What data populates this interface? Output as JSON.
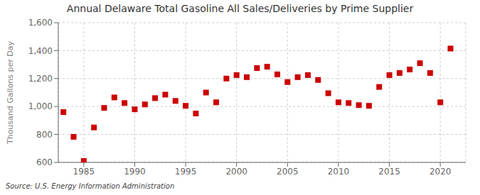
{
  "chart_data": {
    "type": "scatter",
    "title": "Annual Delaware Total Gasoline All Sales/Deliveries by Prime Supplier",
    "y_label": "Thousand Gallons per Day",
    "source": "Source: U.S. Energy Information Administration",
    "x": [
      1983,
      1984,
      1985,
      1986,
      1987,
      1988,
      1989,
      1990,
      1991,
      1992,
      1993,
      1994,
      1995,
      1996,
      1997,
      1998,
      1999,
      2000,
      2001,
      2002,
      2003,
      2004,
      2005,
      2006,
      2007,
      2008,
      2009,
      2010,
      2011,
      2012,
      2013,
      2014,
      2015,
      2016,
      2017,
      2018,
      2019,
      2020,
      2021
    ],
    "values": [
      960,
      783,
      610,
      850,
      990,
      1065,
      1025,
      980,
      1015,
      1060,
      1085,
      1040,
      1005,
      950,
      1100,
      1030,
      1200,
      1225,
      1210,
      1275,
      1285,
      1230,
      1175,
      1210,
      1225,
      1190,
      1095,
      1030,
      1025,
      1010,
      1005,
      1140,
      1225,
      1240,
      1265,
      1310,
      1240,
      1030,
      1415
    ],
    "color": "#cc0000",
    "marker": "square",
    "xlim": [
      1982.5,
      2022.5
    ],
    "ylim": [
      600,
      1600
    ],
    "xticks": [
      1985,
      1990,
      1995,
      2000,
      2005,
      2010,
      2015,
      2020
    ],
    "yticks": [
      600,
      800,
      {
        "value": 1000,
        "label": "1,000"
      },
      {
        "value": 1200,
        "label": "1,200"
      },
      {
        "value": 1400,
        "label": "1,400"
      },
      {
        "value": 1600,
        "label": "1,600"
      }
    ],
    "grid": true
  }
}
